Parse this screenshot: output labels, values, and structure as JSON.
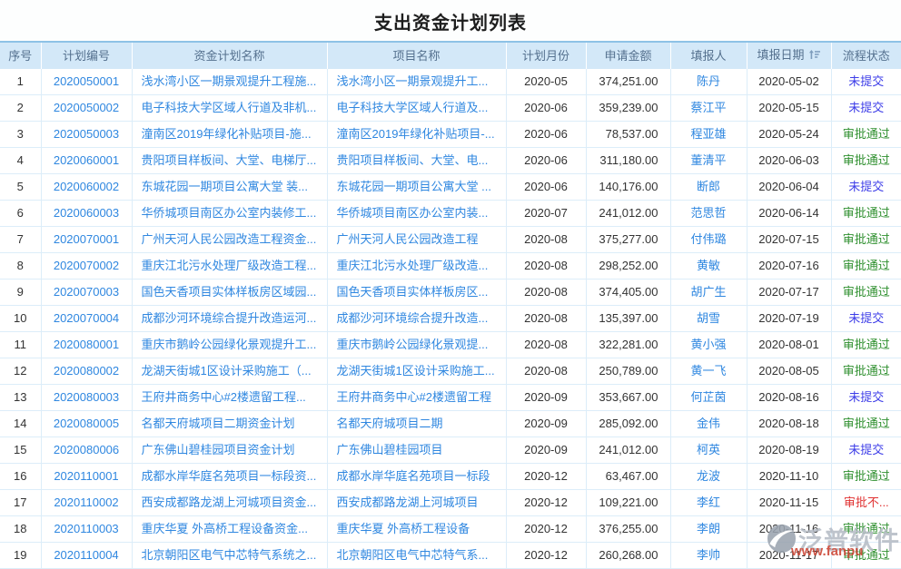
{
  "title": "支出资金计划列表",
  "colors": {
    "header_bg": "#d3e8f8",
    "header_text": "#54708e",
    "header_top_border": "#8ec2e6",
    "grid_border": "#dcedf9",
    "link": "#2f87e0",
    "text": "#333333",
    "watermark_gray": "#b6bcc6",
    "watermark_red": "#cc4433"
  },
  "table": {
    "columns": [
      {
        "label": "序号"
      },
      {
        "label": "计划编号"
      },
      {
        "label": "资金计划名称"
      },
      {
        "label": "项目名称"
      },
      {
        "label": "计划月份"
      },
      {
        "label": "申请金额"
      },
      {
        "label": "填报人"
      },
      {
        "label": "填报日期",
        "sort_icon": "sort-ascending-icon"
      },
      {
        "label": "流程状态"
      }
    ],
    "rows": [
      [
        "1",
        "2020050001",
        "浅水湾小区一期景观提升工程施...",
        "浅水湾小区一期景观提升工...",
        "2020-05",
        "374,251.00",
        "陈丹",
        "2020-05-02",
        "未提交"
      ],
      [
        "2",
        "2020050002",
        "电子科技大学区域人行道及非机...",
        "电子科技大学区域人行道及...",
        "2020-06",
        "359,239.00",
        "蔡江平",
        "2020-05-15",
        "未提交"
      ],
      [
        "3",
        "2020050003",
        "潼南区2019年绿化补贴项目-施...",
        "潼南区2019年绿化补贴项目-...",
        "2020-06",
        "78,537.00",
        "程亚雄",
        "2020-05-24",
        "审批通过"
      ],
      [
        "4",
        "2020060001",
        "贵阳项目样板间、大堂、电梯厅...",
        "贵阳项目样板间、大堂、电...",
        "2020-06",
        "311,180.00",
        "董清平",
        "2020-06-03",
        "审批通过"
      ],
      [
        "5",
        "2020060002",
        "东城花园一期项目公寓大堂 装...",
        "东城花园一期项目公寓大堂 ...",
        "2020-06",
        "140,176.00",
        "断郎",
        "2020-06-04",
        "未提交"
      ],
      [
        "6",
        "2020060003",
        "华侨城项目南区办公室内装修工...",
        "华侨城项目南区办公室内装...",
        "2020-07",
        "241,012.00",
        "范思哲",
        "2020-06-14",
        "审批通过"
      ],
      [
        "7",
        "2020070001",
        "广州天河人民公园改造工程资金...",
        "广州天河人民公园改造工程",
        "2020-08",
        "375,277.00",
        "付伟璐",
        "2020-07-15",
        "审批通过"
      ],
      [
        "8",
        "2020070002",
        "重庆江北污水处理厂级改造工程...",
        "重庆江北污水处理厂级改造...",
        "2020-08",
        "298,252.00",
        "黄敏",
        "2020-07-16",
        "审批通过"
      ],
      [
        "9",
        "2020070003",
        "国色天香项目实体样板房区域园...",
        "国色天香项目实体样板房区...",
        "2020-08",
        "374,405.00",
        "胡广生",
        "2020-07-17",
        "审批通过"
      ],
      [
        "10",
        "2020070004",
        "成都沙河环境综合提升改造运河...",
        "成都沙河环境综合提升改造...",
        "2020-08",
        "135,397.00",
        "胡雪",
        "2020-07-19",
        "未提交"
      ],
      [
        "11",
        "2020080001",
        "重庆市鹅岭公园绿化景观提升工...",
        "重庆市鹅岭公园绿化景观提...",
        "2020-08",
        "322,281.00",
        "黄小强",
        "2020-08-01",
        "审批通过"
      ],
      [
        "12",
        "2020080002",
        "龙湖天街城1区设计采购施工（...",
        "龙湖天街城1区设计采购施工...",
        "2020-08",
        "250,789.00",
        "黄一飞",
        "2020-08-05",
        "审批通过"
      ],
      [
        "13",
        "2020080003",
        "王府井商务中心#2楼遗留工程...",
        "王府井商务中心#2楼遗留工程",
        "2020-09",
        "353,667.00",
        "何芷茵",
        "2020-08-16",
        "未提交"
      ],
      [
        "14",
        "2020080005",
        "名都天府城项目二期资金计划",
        "名都天府城项目二期",
        "2020-09",
        "285,092.00",
        "金伟",
        "2020-08-18",
        "审批通过"
      ],
      [
        "15",
        "2020080006",
        "广东佛山碧桂园项目资金计划",
        "广东佛山碧桂园项目",
        "2020-09",
        "241,012.00",
        "柯英",
        "2020-08-19",
        "未提交"
      ],
      [
        "16",
        "2020110001",
        "成都水岸华庭名苑项目一标段资...",
        "成都水岸华庭名苑项目一标段",
        "2020-12",
        "63,467.00",
        "龙波",
        "2020-11-10",
        "审批通过"
      ],
      [
        "17",
        "2020110002",
        "西安成都路龙湖上河城项目资金...",
        "西安成都路龙湖上河城项目",
        "2020-12",
        "109,221.00",
        "李红",
        "2020-11-15",
        "审批不..."
      ],
      [
        "18",
        "2020110003",
        "重庆华夏 外高桥工程设备资金...",
        "重庆华夏 外高桥工程设备",
        "2020-12",
        "376,255.00",
        "李朗",
        "2020-11-16",
        "审批通过"
      ],
      [
        "19",
        "2020110004",
        "北京朝阳区电气中芯特气系统之...",
        "北京朝阳区电气中芯特气系...",
        "2020-12",
        "260,268.00",
        "李帅",
        "2020-11-17",
        "审批通过"
      ]
    ]
  },
  "status_colors": {
    "未提交": "#3d3de8",
    "审批通过": "#2e8f2e",
    "审批不...": "#e03232"
  },
  "watermark": {
    "logo_icon": "fanpu-logo",
    "text": "泛普软件",
    "url": "www.fanpu"
  }
}
